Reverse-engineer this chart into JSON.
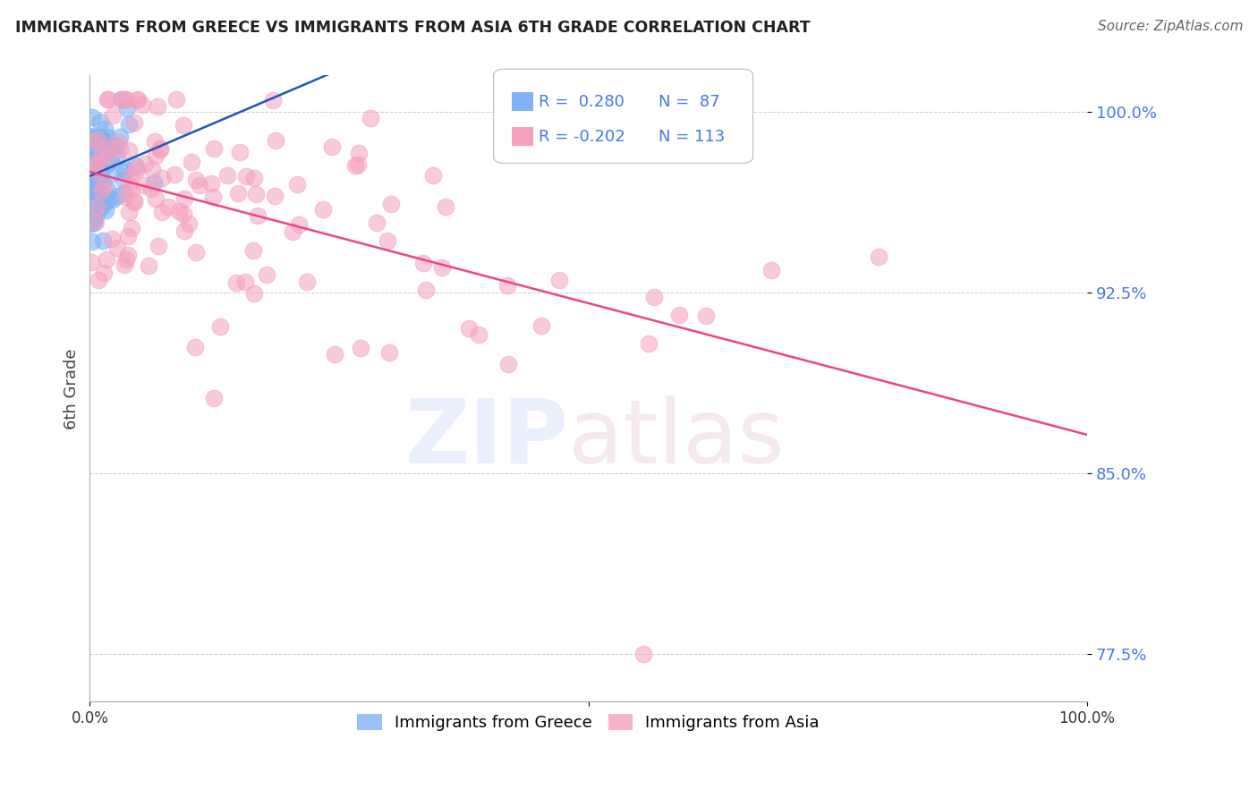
{
  "title": "IMMIGRANTS FROM GREECE VS IMMIGRANTS FROM ASIA 6TH GRADE CORRELATION CHART",
  "source": "Source: ZipAtlas.com",
  "ylabel": "6th Grade",
  "yticks": [
    0.775,
    0.85,
    0.925,
    1.0
  ],
  "ytick_labels": [
    "77.5%",
    "85.0%",
    "92.5%",
    "100.0%"
  ],
  "xlim": [
    0.0,
    1.0
  ],
  "ylim": [
    0.755,
    1.015
  ],
  "legend_bottom": [
    "Immigrants from Greece",
    "Immigrants from Asia"
  ],
  "greece_color": "#7fb3f5",
  "asia_color": "#f5a0be",
  "greece_line_color": "#2255bb",
  "asia_line_color": "#ee4488",
  "greece_R": 0.28,
  "greece_N": 87,
  "asia_R": -0.202,
  "asia_N": 113,
  "ytick_color": "#4477ee",
  "xtick_left": "0.0%",
  "xtick_right": "100.0%"
}
